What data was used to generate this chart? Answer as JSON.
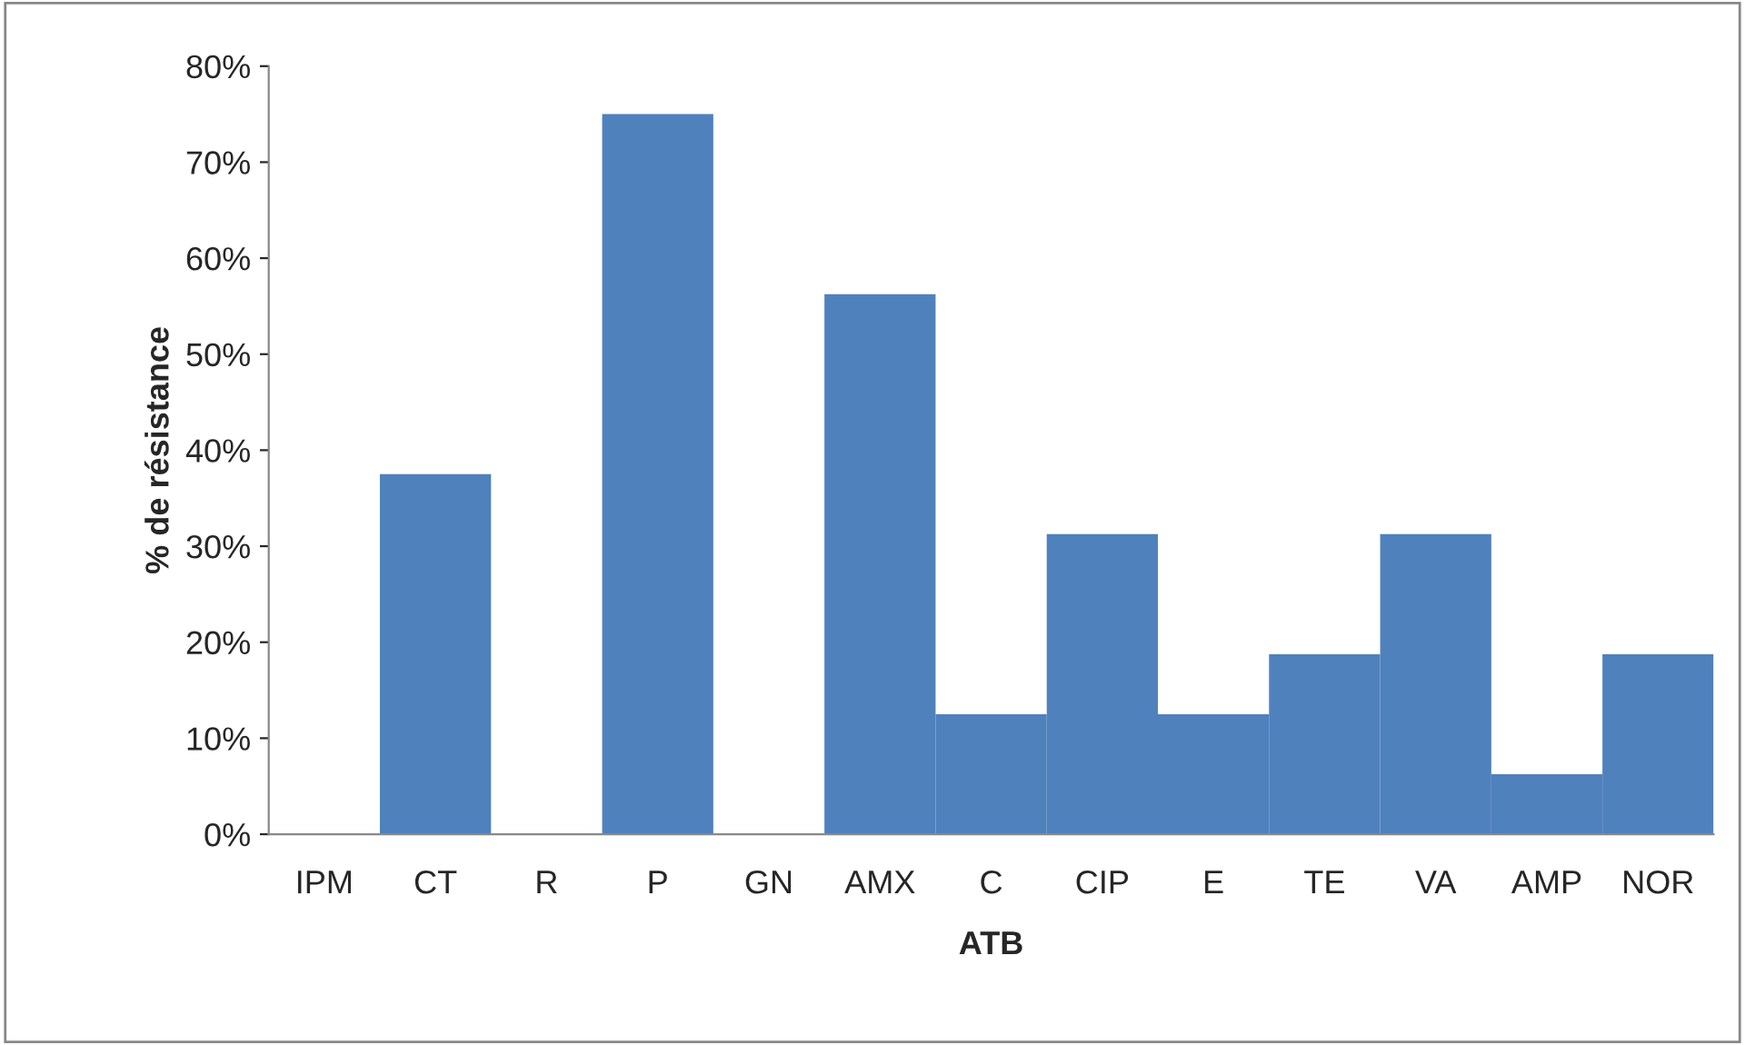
{
  "chart_data": {
    "type": "bar",
    "xlabel": "ATB",
    "ylabel": "% de résistance",
    "categories": [
      "IPM",
      "CT",
      "R",
      "P",
      "GN",
      "AMX",
      "C",
      "CIP",
      "E",
      "TE",
      "VA",
      "AMP",
      "NOR"
    ],
    "values": [
      0,
      37.5,
      0,
      75,
      0,
      56.25,
      12.5,
      31.25,
      12.5,
      18.75,
      31.25,
      6.25,
      18.75
    ],
    "color": "#4f81bd",
    "ylim": [
      0,
      80
    ],
    "yticks": [
      {
        "value": 0,
        "label": "0%"
      },
      {
        "value": 10,
        "label": "10%"
      },
      {
        "value": 20,
        "label": "20%"
      },
      {
        "value": 30,
        "label": "30%"
      },
      {
        "value": 40,
        "label": "40%"
      },
      {
        "value": 50,
        "label": "50%"
      },
      {
        "value": 60,
        "label": "60%"
      },
      {
        "value": 70,
        "label": "70%"
      },
      {
        "value": 80,
        "label": "80%"
      }
    ],
    "grid": false,
    "legend": false
  }
}
